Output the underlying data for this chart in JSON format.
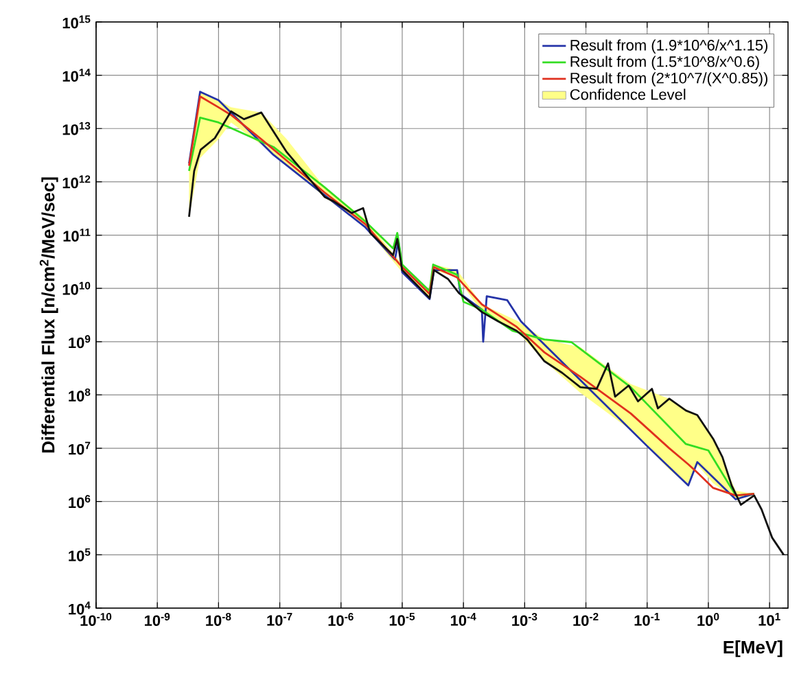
{
  "chart_data": {
    "type": "line",
    "xlabel": "E[MeV]",
    "ylabel": "Differential Flux [n/cm$^{2}$/MeV/sec]",
    "log": "xy",
    "grid": true,
    "legend": "top right",
    "line_style": "solid",
    "marker": "none",
    "xlim": [
      1e-10,
      20
    ],
    "ylim": [
      10000,
      1000000000000000.0
    ],
    "xticks": [
      {
        "value": 1e-10,
        "label": "10$^{-10}$"
      },
      {
        "value": 1e-09,
        "label": "10$^{-9}$"
      },
      {
        "value": 1e-08,
        "label": "10$^{-8}$"
      },
      {
        "value": 1e-07,
        "label": "10$^{-7}$"
      },
      {
        "value": 1e-06,
        "label": "10$^{-6}$"
      },
      {
        "value": 1e-05,
        "label": "10$^{-5}$"
      },
      {
        "value": 0.0001,
        "label": "10$^{-4}$"
      },
      {
        "value": 0.001,
        "label": "10$^{-3}$"
      },
      {
        "value": 0.01,
        "label": "10$^{-2}$"
      },
      {
        "value": 0.1,
        "label": "10$^{-1}$"
      },
      {
        "value": 1,
        "label": "10$^{0}$"
      },
      {
        "value": 10,
        "label": "10$^{1}$"
      }
    ],
    "yticks": [
      {
        "value": 10000,
        "label": "10$^{4}$"
      },
      {
        "value": 100000,
        "label": "10$^{5}$"
      },
      {
        "value": 1000000.0,
        "label": "10$^{6}$"
      },
      {
        "value": 10000000.0,
        "label": "10$^{7}$"
      },
      {
        "value": 100000000.0,
        "label": "10$^{8}$"
      },
      {
        "value": 1000000000.0,
        "label": "10$^{9}$"
      },
      {
        "value": 10000000000.0,
        "label": "10$^{10}$"
      },
      {
        "value": 100000000000.0,
        "label": "10$^{11}$"
      },
      {
        "value": 1000000000000.0,
        "label": "10$^{12}$"
      },
      {
        "value": 10000000000000.0,
        "label": "10$^{13}$"
      },
      {
        "value": 100000000000000.0,
        "label": "10$^{14}$"
      },
      {
        "value": 1000000000000000.0,
        "label": "10$^{15}$"
      }
    ],
    "series": [
      {
        "type": "area",
        "name": "Confidence Level",
        "color": "#ffff88"
      },
      {
        "name": "Result from (1.9*10^6/x^1.15)",
        "color": "#2433a8",
        "x": [
          3.3e-09,
          5e-09,
          1e-08,
          7.9e-08,
          5.4e-07,
          2.5e-06,
          7.6e-06,
          8.7e-06,
          1e-05,
          2.8e-05,
          3.3e-05,
          7.9e-05,
          8.9e-05,
          0.0002,
          0.00021,
          0.00024,
          0.00052,
          0.00087,
          0.01,
          0.1,
          0.47,
          0.66,
          2.8,
          5.6
        ],
        "values": [
          2200000000000.0,
          49000000000000.0,
          34000000000000.0,
          3200000000000.0,
          560000000000.0,
          140000000000.0,
          35000000000.0,
          79000000000.0,
          20000000000.0,
          6300000000.0,
          22000000000.0,
          22000000000.0,
          7900000000.0,
          4000000000.0,
          1000000000.0,
          7100000000.0,
          6000000000.0,
          2400000000.0,
          150000000.0,
          11000000.0,
          2000000.0,
          5500000.0,
          1100000.0,
          1400000.0
        ]
      },
      {
        "name": "Result from (1.5*10^8/x^0.6)",
        "color": "#33dd22",
        "x": [
          3.3e-09,
          5e-09,
          1e-08,
          7.9e-08,
          5.4e-07,
          2.5e-06,
          7.1e-06,
          8.3e-06,
          1e-05,
          2.8e-05,
          3.2e-05,
          7.9e-05,
          0.0001,
          0.0002,
          0.00063,
          0.0021,
          0.0058,
          0.054,
          0.43,
          1,
          2.8,
          5.6
        ],
        "values": [
          1600000000000.0,
          16000000000000.0,
          13000000000000.0,
          4500000000000.0,
          790000000000.0,
          180000000000.0,
          56000000000.0,
          110000000000.0,
          28000000000.0,
          8900000000.0,
          28000000000.0,
          18000000000.0,
          5600000000.0,
          4000000000.0,
          1600000000.0,
          1100000000.0,
          980000000.0,
          140000000.0,
          12000000.0,
          9100000.0,
          1300000.0,
          1400000.0
        ]
      },
      {
        "name": "Result from (2*10^7/(X^0.85))",
        "color": "#e0301e",
        "x": [
          3.3e-09,
          5e-09,
          1e-08,
          1.6e-08,
          5e-08,
          1.3e-07,
          5.4e-07,
          2.5e-06,
          1e-05,
          2.8e-05,
          3.3e-05,
          7.9e-05,
          0.0002,
          0.00074,
          0.0021,
          0.0081,
          0.054,
          0.23,
          0.47,
          0.66,
          1.2,
          2.8,
          5.6
        ],
        "values": [
          2000000000000.0,
          40000000000000.0,
          25000000000000.0,
          18000000000000.0,
          6300000000000.0,
          2500000000000.0,
          630000000000.0,
          160000000000.0,
          25000000000.0,
          7900000000.0,
          25000000000.0,
          16000000000.0,
          5000000000.0,
          1900000000.0,
          630000000.0,
          220000000.0,
          45000000.0,
          10000000.0,
          5000000.0,
          3500000.0,
          1800000.0,
          1300000.0,
          1400000.0
        ],
        "upper": [
          2200000000000.0,
          49000000000000.0,
          34000000000000.0,
          25000000000000.0,
          20000000000000.0,
          6300000000000.0,
          790000000000.0,
          200000000000.0,
          28000000000.0,
          8900000000.0,
          28000000000.0,
          22000000000.0,
          5000000000.0,
          2500000000.0,
          1100000000.0,
          790000000.0,
          160000000.0,
          85000000.0,
          51000000.0,
          42000000.0,
          15000000.0,
          1600000.0,
          1400000.0
        ],
        "lower": [
          220000000000.0,
          2800000000000.0,
          6300000000000.0,
          13000000000000.0,
          5000000000000.0,
          2000000000000.0,
          520000000000.0,
          140000000000.0,
          20000000000.0,
          6300000000.0,
          22000000000.0,
          16000000000.0,
          3600000000.0,
          1600000000.0,
          430000000.0,
          110000000.0,
          22000000.0,
          4000000.0,
          2000000.0,
          4900000.0,
          2200000.0,
          1100000.0,
          1300000.0
        ]
      },
      {
        "color": "#111111",
        "x": [
          3.3e-09,
          4e-09,
          5.1e-09,
          8.7e-09,
          1.6e-08,
          2.6e-08,
          5e-08,
          1.3e-07,
          5.4e-07,
          7.6e-07,
          1.5e-06,
          2.3e-06,
          3e-06,
          7.1e-06,
          8.3e-06,
          1e-05,
          2.8e-05,
          3.3e-05,
          5.6e-05,
          8.5e-05,
          0.0002,
          0.00037,
          0.00074,
          0.0011,
          0.0021,
          0.0041,
          0.0081,
          0.015,
          0.023,
          0.03,
          0.05,
          0.071,
          0.12,
          0.15,
          0.23,
          0.43,
          0.66,
          1.2,
          1.7,
          2.4,
          3.4,
          5.6,
          7.4,
          11,
          17
        ],
        "values": [
          220000000000.0,
          1600000000000.0,
          4000000000000.0,
          6600000000000.0,
          21000000000000.0,
          15000000000000.0,
          20000000000000.0,
          3600000000000.0,
          520000000000.0,
          430000000000.0,
          260000000000.0,
          320000000000.0,
          110000000000.0,
          42000000000.0,
          85000000000.0,
          22000000000.0,
          6600000000.0,
          22000000000.0,
          15000000000.0,
          8100000000.0,
          3600000000.0,
          2400000000.0,
          1600000000.0,
          1100000000.0,
          430000000.0,
          260000000.0,
          140000000.0,
          130000000.0,
          390000000.0,
          93000000.0,
          150000000.0,
          76000000.0,
          130000000.0,
          56000000.0,
          85000000.0,
          51000000.0,
          42000000.0,
          15000000.0,
          6800000.0,
          2000000.0,
          870000.0,
          1300000.0,
          710000.0,
          210000.0,
          100000.0
        ]
      }
    ]
  }
}
